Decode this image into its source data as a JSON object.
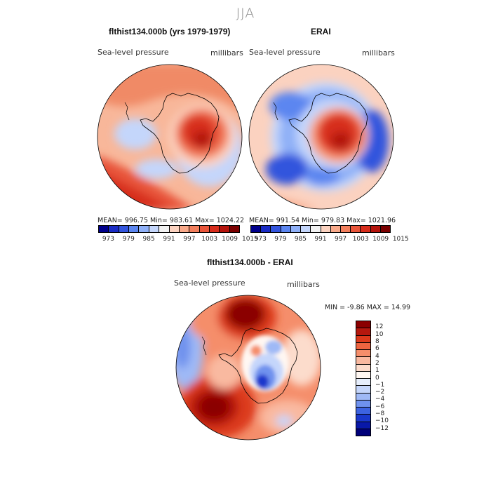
{
  "figure": {
    "season": "JJA"
  },
  "panels": [
    {
      "title": "flthist134.000b (yrs 1979-1979)",
      "variable": "Sea-level pressure",
      "units": "millibars",
      "stats": "MEAN= 996.75   Min= 983.61   Max= 1024.22"
    },
    {
      "title": "ERAI",
      "variable": "Sea-level pressure",
      "units": "millibars",
      "stats": "MEAN= 991.54   Min= 979.83   Max= 1021.96"
    },
    {
      "title": "flthist134.000b - ERAI",
      "variable": "Sea-level pressure",
      "units": "millibars",
      "stats": "MIN =   -9.86  MAX =   14.99"
    }
  ],
  "chart_data": [
    {
      "type": "heatmap",
      "title": "flthist134.000b (yrs 1979-1979)",
      "variable": "Sea-level pressure",
      "units": "millibars",
      "projection": "south polar stereographic",
      "mean": 996.75,
      "min": 983.61,
      "max": 1024.22,
      "colorbar_levels": [
        973,
        979,
        985,
        991,
        997,
        1003,
        1009,
        1015
      ],
      "colorbar_ticks": [
        "973",
        "979",
        "985",
        "991",
        "997",
        "1003",
        "1009",
        "1015"
      ]
    },
    {
      "type": "heatmap",
      "title": "ERAI",
      "variable": "Sea-level pressure",
      "units": "millibars",
      "projection": "south polar stereographic",
      "mean": 991.54,
      "min": 979.83,
      "max": 1021.96,
      "colorbar_levels": [
        973,
        979,
        985,
        991,
        997,
        1003,
        1009,
        1015
      ],
      "colorbar_ticks": [
        "973",
        "979",
        "985",
        "991",
        "997",
        "1003",
        "1009",
        "1015"
      ]
    },
    {
      "type": "heatmap",
      "title": "flthist134.000b - ERAI",
      "variable": "Sea-level pressure",
      "units": "millibars",
      "projection": "south polar stereographic",
      "min": -9.86,
      "max": 14.99,
      "colorbar_levels": [
        12,
        10,
        8,
        6,
        4,
        2,
        1,
        0,
        -1,
        -2,
        -4,
        -6,
        -8,
        -10,
        -12
      ],
      "colorbar_ticks": [
        "12",
        "10",
        "8",
        "6",
        "4",
        "2",
        "1",
        "0",
        "−1",
        "−2",
        "−4",
        "−6",
        "−8",
        "−10",
        "−12"
      ]
    }
  ],
  "palettes": {
    "slp": [
      "#00008b",
      "#1a2cc4",
      "#3355dd",
      "#5c86f0",
      "#8fb0f7",
      "#c4d6fb",
      "#f2f2f2",
      "#fbd2c0",
      "#f8a98a",
      "#f27f5d",
      "#e8553a",
      "#d72d1c",
      "#b4140c",
      "#7a0000"
    ],
    "diff": [
      "#8b0000",
      "#b5180e",
      "#dc3a1c",
      "#ee6440",
      "#f58e6b",
      "#f9b9a0",
      "#fcdccc",
      "#fff7f2",
      "#e6eefc",
      "#c5d6fb",
      "#9fb9f6",
      "#6f92ee",
      "#3d63e1",
      "#1a38cc",
      "#0818a8",
      "#00007a"
    ]
  }
}
